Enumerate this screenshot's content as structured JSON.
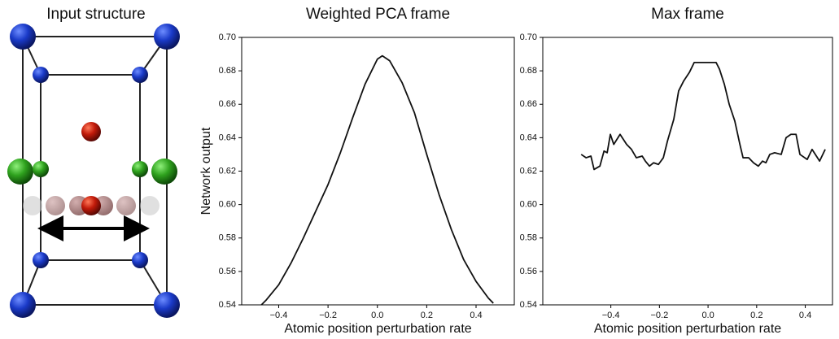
{
  "illustration_title": "Input structure",
  "chart_data": [
    {
      "type": "line",
      "title": "Weighted PCA frame",
      "y_label": "Network output",
      "x_label": "Atomic position perturbation rate",
      "xlim": [
        -0.55,
        0.555
      ],
      "ylim": [
        0.54,
        0.7
      ],
      "xticks": [
        {
          "value": -0.4,
          "label": "−0.4"
        },
        {
          "value": -0.2,
          "label": "−0.2"
        },
        {
          "value": 0,
          "label": "0.0"
        },
        0.2,
        0.4
      ],
      "yticks": [
        0.54,
        0.56,
        0.58,
        {
          "value": 0.6,
          "label": "0.60"
        },
        0.62,
        0.64,
        0.66,
        0.68,
        {
          "value": 0.7,
          "label": "0.70"
        }
      ],
      "color": "#111111",
      "x": [
        -0.47,
        -0.45,
        -0.4,
        -0.35,
        -0.3,
        -0.25,
        -0.2,
        -0.15,
        -0.1,
        -0.05,
        0,
        0.02,
        0.05,
        0.1,
        0.15,
        0.2,
        0.25,
        0.3,
        0.35,
        0.4,
        0.45,
        0.47
      ],
      "values": [
        0.54,
        0.543,
        0.552,
        0.565,
        0.58,
        0.596,
        0.612,
        0.631,
        0.652,
        0.672,
        0.687,
        0.689,
        0.686,
        0.673,
        0.655,
        0.63,
        0.606,
        0.585,
        0.567,
        0.554,
        0.544,
        0.541
      ]
    },
    {
      "type": "line",
      "title": "Max frame",
      "x_label": "Atomic position perturbation rate",
      "xlim": [
        -0.68,
        0.512
      ],
      "ylim": [
        0.54,
        0.7
      ],
      "xticks": [
        {
          "value": -0.4,
          "label": "−0.4"
        },
        {
          "value": -0.2,
          "label": "−0.2"
        },
        {
          "value": 0,
          "label": "0.0"
        },
        0.2,
        0.4
      ],
      "yticks": [
        0.54,
        0.56,
        0.58,
        {
          "value": 0.6,
          "label": "0.60"
        },
        0.62,
        0.64,
        0.66,
        0.68,
        {
          "value": 0.7,
          "label": "0.70"
        }
      ],
      "color": "#111111",
      "x": [
        -0.522,
        -0.502,
        -0.482,
        -0.469,
        -0.445,
        -0.428,
        -0.415,
        -0.402,
        -0.388,
        -0.362,
        -0.335,
        -0.315,
        -0.295,
        -0.271,
        -0.258,
        -0.241,
        -0.224,
        -0.204,
        -0.184,
        -0.167,
        -0.141,
        -0.121,
        -0.1,
        -0.077,
        -0.057,
        -0.013,
        0.007,
        0.033,
        0.047,
        0.067,
        0.087,
        0.11,
        0.131,
        0.144,
        0.167,
        0.187,
        0.207,
        0.224,
        0.238,
        0.254,
        0.274,
        0.301,
        0.321,
        0.341,
        0.362,
        0.378,
        0.408,
        0.428,
        0.459,
        0.482
      ],
      "values": [
        0.63,
        0.628,
        0.629,
        0.621,
        0.623,
        0.632,
        0.631,
        0.642,
        0.636,
        0.642,
        0.636,
        0.633,
        0.628,
        0.629,
        0.626,
        0.623,
        0.625,
        0.624,
        0.628,
        0.638,
        0.651,
        0.668,
        0.674,
        0.679,
        0.685,
        0.685,
        0.685,
        0.685,
        0.681,
        0.672,
        0.66,
        0.65,
        0.636,
        0.628,
        0.628,
        0.625,
        0.623,
        0.626,
        0.625,
        0.63,
        0.631,
        0.63,
        0.64,
        0.642,
        0.642,
        0.63,
        0.627,
        0.633,
        0.626,
        0.633
      ]
    }
  ]
}
